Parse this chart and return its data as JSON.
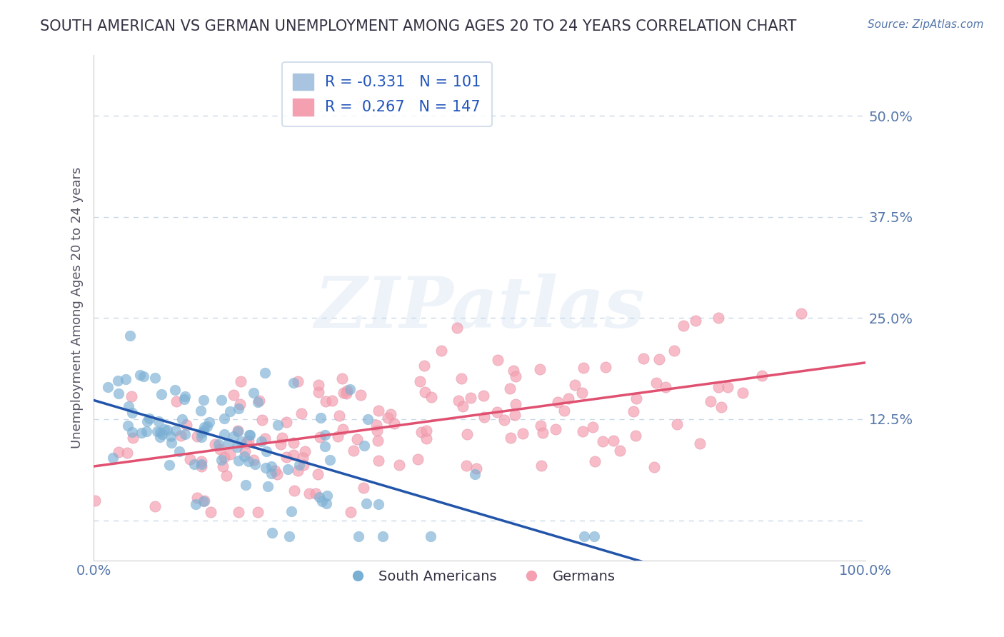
{
  "title": "SOUTH AMERICAN VS GERMAN UNEMPLOYMENT AMONG AGES 20 TO 24 YEARS CORRELATION CHART",
  "source": "Source: ZipAtlas.com",
  "xlabel": "",
  "ylabel": "Unemployment Among Ages 20 to 24 years",
  "xlim": [
    0,
    1.0
  ],
  "ylim": [
    -0.05,
    0.575
  ],
  "yticks": [
    0.0,
    0.125,
    0.25,
    0.375,
    0.5
  ],
  "ytick_labels": [
    "",
    "12.5%",
    "25.0%",
    "37.5%",
    "50.0%"
  ],
  "xtick_labels": [
    "0.0%",
    "100.0%"
  ],
  "legend_items": [
    {
      "label": "R = -0.331   N = 101",
      "color": "#a8c4e0"
    },
    {
      "label": "R =  0.267   N = 147",
      "color": "#f4a0b0"
    }
  ],
  "south_american_R": -0.331,
  "south_american_N": 101,
  "german_R": 0.267,
  "german_N": 147,
  "blue_color": "#7aafd4",
  "pink_color": "#f4a0b0",
  "blue_line_color": "#2255aa",
  "pink_line_color": "#e05070",
  "watermark": "ZIPatlas",
  "title_color": "#333333",
  "axis_label_color": "#5577aa",
  "tick_color": "#5577aa",
  "background_color": "#ffffff",
  "grid_color": "#c8d8e8",
  "legend_border_color": "#c8d8e8",
  "seed_blue": 42,
  "seed_pink": 123
}
